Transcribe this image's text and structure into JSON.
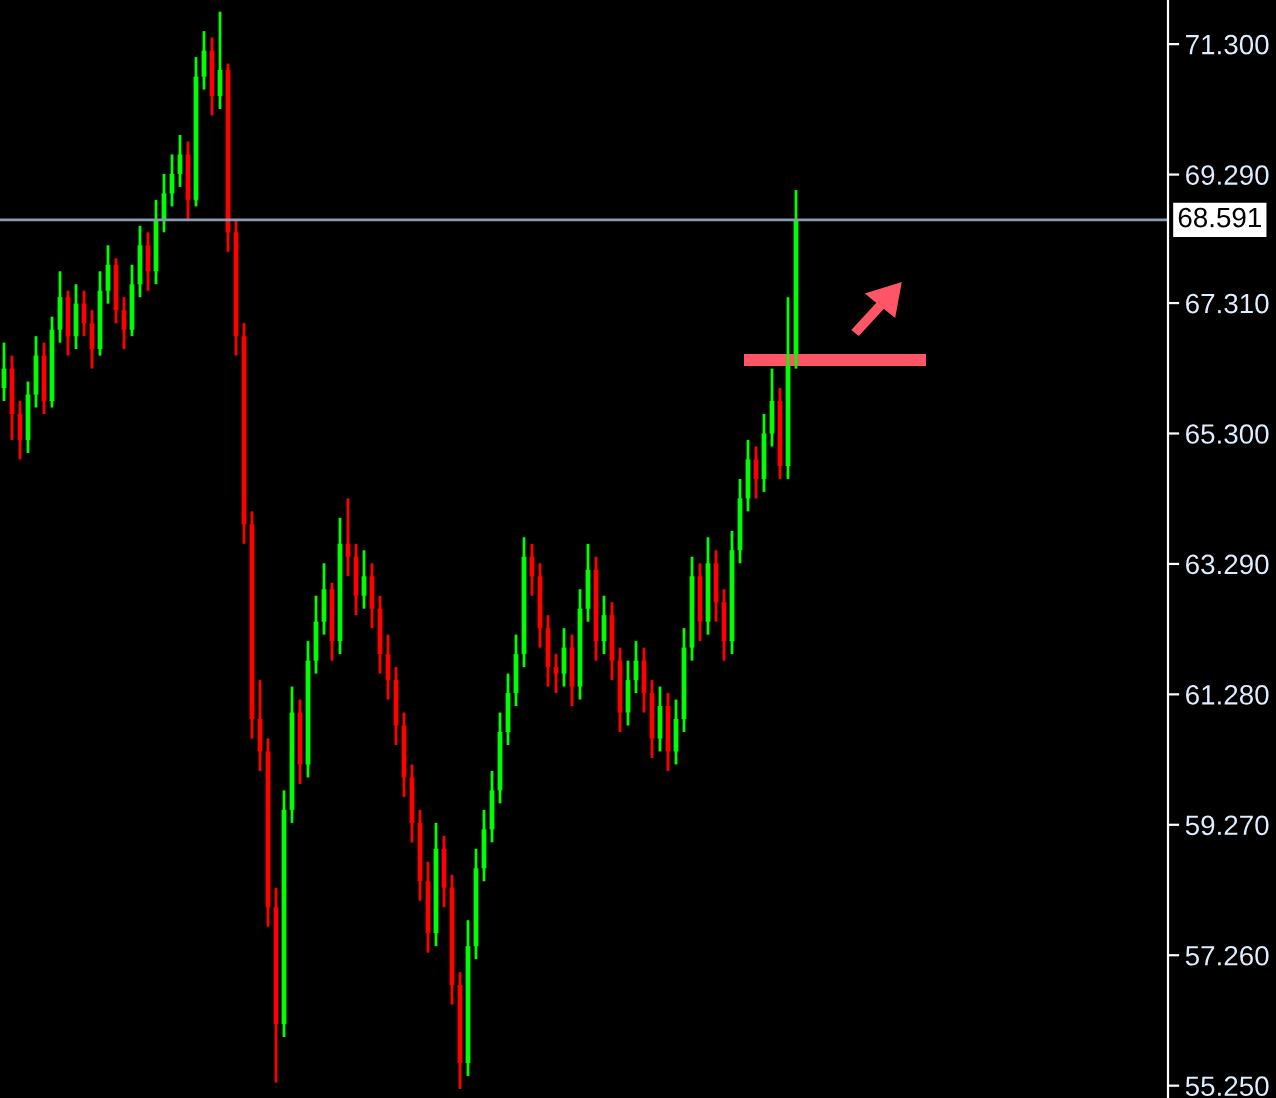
{
  "chart_data": {
    "type": "candlestick",
    "categories": [
      null,
      null,
      null,
      null,
      null,
      null,
      null,
      null,
      null,
      null,
      null,
      null,
      null,
      null,
      null,
      null,
      null,
      null,
      null,
      null,
      null,
      null,
      null,
      null,
      null,
      null,
      null,
      null,
      null,
      null,
      null,
      null,
      null,
      null,
      null,
      null,
      null,
      null,
      null,
      null,
      null,
      null,
      null,
      null,
      null,
      null,
      null,
      null,
      null,
      null,
      null,
      null,
      null,
      null,
      null,
      null,
      null,
      null,
      null,
      null,
      null,
      null,
      null,
      null,
      null,
      null,
      null,
      null,
      null,
      null,
      null,
      null,
      null,
      null,
      null,
      null,
      null,
      null,
      null,
      null,
      null,
      null,
      null,
      null,
      null,
      null,
      null,
      null,
      null,
      null,
      null,
      null,
      null,
      null,
      null,
      null,
      null,
      null,
      null,
      null,
      null,
      null,
      null,
      null,
      null,
      null,
      null,
      null,
      null,
      null,
      null,
      null,
      null,
      null,
      null,
      null,
      null,
      null,
      null,
      null,
      null,
      null,
      null,
      null,
      null,
      null,
      null,
      null,
      null,
      null,
      null,
      null,
      null,
      null,
      null,
      null,
      null,
      null,
      null,
      null,
      null,
      null,
      null,
      null,
      null,
      null
    ],
    "ohlc": [
      [
        66.0,
        66.7,
        65.8,
        66.3
      ],
      [
        66.3,
        66.5,
        65.2,
        65.6
      ],
      [
        65.6,
        65.8,
        64.9,
        65.2
      ],
      [
        65.2,
        66.1,
        65.0,
        65.9
      ],
      [
        65.9,
        66.8,
        65.7,
        66.5
      ],
      [
        66.5,
        66.7,
        65.6,
        65.8
      ],
      [
        65.8,
        67.1,
        65.7,
        66.9
      ],
      [
        66.9,
        67.8,
        66.7,
        67.4
      ],
      [
        67.4,
        67.5,
        66.5,
        66.8
      ],
      [
        66.8,
        67.6,
        66.6,
        67.3
      ],
      [
        67.3,
        67.5,
        66.8,
        67.0
      ],
      [
        67.0,
        67.2,
        66.3,
        66.6
      ],
      [
        66.6,
        67.8,
        66.5,
        67.5
      ],
      [
        67.5,
        68.2,
        67.3,
        67.9
      ],
      [
        67.9,
        68.0,
        67.0,
        67.2
      ],
      [
        67.2,
        67.4,
        66.6,
        66.9
      ],
      [
        66.9,
        67.9,
        66.8,
        67.6
      ],
      [
        67.6,
        68.5,
        67.4,
        68.2
      ],
      [
        68.2,
        68.4,
        67.5,
        67.8
      ],
      [
        67.8,
        68.9,
        67.6,
        68.6
      ],
      [
        68.6,
        69.3,
        68.4,
        69.0
      ],
      [
        69.0,
        69.6,
        68.8,
        69.3
      ],
      [
        69.3,
        69.9,
        69.1,
        69.6
      ],
      [
        69.6,
        69.8,
        68.6,
        68.9
      ],
      [
        68.9,
        71.1,
        68.8,
        70.8
      ],
      [
        70.8,
        71.5,
        70.6,
        71.2
      ],
      [
        71.2,
        71.4,
        70.2,
        70.5
      ],
      [
        70.5,
        71.8,
        70.3,
        70.9
      ],
      [
        70.9,
        71.0,
        68.1,
        68.4
      ],
      [
        68.4,
        68.6,
        66.5,
        66.8
      ],
      [
        66.8,
        67.0,
        63.6,
        63.9
      ],
      [
        63.9,
        64.1,
        60.6,
        60.9
      ],
      [
        60.9,
        61.5,
        60.1,
        60.4
      ],
      [
        60.4,
        60.6,
        57.7,
        58.0
      ],
      [
        58.0,
        58.3,
        55.3,
        56.2
      ],
      [
        56.2,
        59.8,
        56.0,
        59.5
      ],
      [
        59.5,
        61.4,
        59.3,
        61.0
      ],
      [
        61.0,
        61.2,
        59.9,
        60.2
      ],
      [
        60.2,
        62.1,
        60.0,
        61.8
      ],
      [
        61.8,
        62.8,
        61.6,
        62.4
      ],
      [
        62.4,
        63.3,
        62.2,
        62.9
      ],
      [
        62.9,
        63.0,
        61.8,
        62.1
      ],
      [
        62.1,
        64.0,
        61.9,
        63.6
      ],
      [
        63.6,
        64.3,
        63.1,
        63.4
      ],
      [
        63.4,
        63.6,
        62.5,
        62.8
      ],
      [
        62.8,
        63.5,
        62.6,
        63.1
      ],
      [
        63.1,
        63.3,
        62.3,
        62.6
      ],
      [
        62.6,
        62.8,
        61.6,
        61.9
      ],
      [
        61.9,
        62.2,
        61.2,
        61.5
      ],
      [
        61.5,
        61.7,
        60.5,
        60.8
      ],
      [
        60.8,
        61.0,
        59.7,
        60.0
      ],
      [
        60.0,
        60.2,
        59.0,
        59.3
      ],
      [
        59.3,
        59.5,
        58.1,
        58.4
      ],
      [
        58.4,
        58.7,
        57.3,
        57.6
      ],
      [
        57.6,
        59.3,
        57.4,
        58.9
      ],
      [
        58.9,
        59.1,
        58.0,
        58.3
      ],
      [
        58.3,
        58.5,
        56.5,
        56.8
      ],
      [
        56.8,
        57.0,
        55.2,
        55.6
      ],
      [
        55.6,
        57.8,
        55.4,
        57.4
      ],
      [
        57.4,
        58.9,
        57.2,
        58.6
      ],
      [
        58.6,
        59.5,
        58.4,
        59.2
      ],
      [
        59.2,
        60.1,
        59.0,
        59.8
      ],
      [
        59.8,
        61.0,
        59.6,
        60.7
      ],
      [
        60.7,
        61.6,
        60.5,
        61.3
      ],
      [
        61.3,
        62.2,
        61.1,
        61.9
      ],
      [
        61.9,
        63.7,
        61.7,
        63.4
      ],
      [
        63.4,
        63.6,
        62.8,
        63.1
      ],
      [
        63.1,
        63.3,
        62.0,
        62.3
      ],
      [
        62.3,
        62.5,
        61.4,
        61.7
      ],
      [
        61.7,
        61.9,
        61.3,
        61.6
      ],
      [
        61.6,
        62.3,
        61.4,
        62.0
      ],
      [
        62.0,
        62.2,
        61.1,
        61.4
      ],
      [
        61.4,
        62.9,
        61.2,
        62.6
      ],
      [
        62.6,
        63.6,
        62.4,
        63.2
      ],
      [
        63.2,
        63.4,
        61.8,
        62.1
      ],
      [
        62.1,
        62.8,
        61.9,
        62.5
      ],
      [
        62.5,
        62.7,
        61.5,
        61.8
      ],
      [
        61.8,
        62.0,
        60.7,
        61.0
      ],
      [
        61.0,
        61.8,
        60.8,
        61.5
      ],
      [
        61.5,
        62.1,
        61.3,
        61.8
      ],
      [
        61.8,
        62.0,
        61.0,
        61.3
      ],
      [
        61.3,
        61.5,
        60.3,
        60.6
      ],
      [
        60.6,
        61.4,
        60.4,
        61.1
      ],
      [
        61.1,
        61.3,
        60.1,
        60.4
      ],
      [
        60.4,
        61.2,
        60.2,
        60.9
      ],
      [
        60.9,
        62.3,
        60.7,
        62.0
      ],
      [
        62.0,
        63.4,
        61.8,
        63.1
      ],
      [
        63.1,
        63.3,
        62.1,
        62.4
      ],
      [
        62.4,
        63.7,
        62.2,
        63.3
      ],
      [
        63.3,
        63.5,
        62.4,
        62.7
      ],
      [
        62.7,
        62.9,
        61.8,
        62.1
      ],
      [
        62.1,
        63.8,
        61.9,
        63.5
      ],
      [
        63.5,
        64.6,
        63.3,
        64.3
      ],
      [
        64.3,
        65.2,
        64.1,
        64.9
      ],
      [
        64.9,
        65.1,
        64.3,
        64.6
      ],
      [
        64.6,
        65.6,
        64.4,
        65.3
      ],
      [
        65.3,
        66.3,
        65.1,
        65.8
      ],
      [
        65.8,
        66.0,
        64.6,
        64.8
      ],
      [
        64.8,
        67.4,
        64.6,
        66.5
      ],
      [
        66.5,
        69.05,
        66.3,
        68.59
      ],
      null,
      null,
      null,
      null,
      null,
      null,
      null,
      null,
      null,
      null,
      null,
      null,
      null,
      null,
      null,
      null,
      null,
      null,
      null,
      null,
      null,
      null,
      null,
      null,
      null,
      null,
      null,
      null,
      null,
      null,
      null,
      null,
      null,
      null,
      null,
      null,
      null,
      null,
      null,
      null,
      null,
      null,
      null,
      null,
      null,
      null
    ],
    "colors": [
      "#00ff00",
      "#ff0000",
      "#ff0000",
      "#00ff00",
      "#00ff00",
      "#ff0000",
      "#00ff00",
      "#00ff00",
      "#ff0000",
      "#00ff00",
      "#ff0000",
      "#ff0000",
      "#00ff00",
      "#00ff00",
      "#ff0000",
      "#ff0000",
      "#00ff00",
      "#00ff00",
      "#ff0000",
      "#00ff00",
      "#00ff00",
      "#00ff00",
      "#00ff00",
      "#ff0000",
      "#00ff00",
      "#00ff00",
      "#ff0000",
      "#00ff00",
      "#ff0000",
      "#ff0000",
      "#ff0000",
      "#ff0000",
      "#ff0000",
      "#ff0000",
      "#ff0000",
      "#00ff00",
      "#00ff00",
      "#ff0000",
      "#00ff00",
      "#00ff00",
      "#00ff00",
      "#ff0000",
      "#00ff00",
      "#ff0000",
      "#ff0000",
      "#00ff00",
      "#ff0000",
      "#ff0000",
      "#ff0000",
      "#ff0000",
      "#ff0000",
      "#ff0000",
      "#ff0000",
      "#ff0000",
      "#00ff00",
      "#ff0000",
      "#ff0000",
      "#ff0000",
      "#00ff00",
      "#00ff00",
      "#00ff00",
      "#00ff00",
      "#00ff00",
      "#00ff00",
      "#00ff00",
      "#00ff00",
      "#ff0000",
      "#ff0000",
      "#ff0000",
      "#ff0000",
      "#00ff00",
      "#ff0000",
      "#00ff00",
      "#00ff00",
      "#ff0000",
      "#00ff00",
      "#ff0000",
      "#ff0000",
      "#00ff00",
      "#00ff00",
      "#ff0000",
      "#ff0000",
      "#00ff00",
      "#ff0000",
      "#00ff00",
      "#00ff00",
      "#00ff00",
      "#ff0000",
      "#00ff00",
      "#ff0000",
      "#ff0000",
      "#00ff00",
      "#00ff00",
      "#00ff00",
      "#ff0000",
      "#00ff00",
      "#00ff00",
      "#ff0000",
      "#00ff00",
      "#00ff00",
      null,
      null,
      null,
      null,
      null,
      null,
      null,
      null,
      null,
      null,
      null,
      null,
      null,
      null,
      null,
      null,
      null,
      null,
      null,
      null,
      null,
      null,
      null,
      null,
      null,
      null,
      null,
      null,
      null,
      null,
      null,
      null,
      null,
      null,
      null,
      null,
      null,
      null,
      null,
      null,
      null,
      null,
      null,
      null,
      null,
      null
    ],
    "ylim": [
      55.06,
      71.98
    ],
    "yticks": [
      {
        "value": 55.25,
        "label": "55.250"
      },
      {
        "value": 57.26,
        "label": "57.260"
      },
      {
        "value": 59.27,
        "label": "59.270"
      },
      {
        "value": 61.28,
        "label": "61.280"
      },
      {
        "value": 63.29,
        "label": "63.290"
      },
      {
        "value": 65.3,
        "label": "65.300"
      },
      {
        "value": 67.31,
        "label": "67.310"
      },
      {
        "value": 69.29,
        "label": "69.290"
      },
      {
        "value": 71.3,
        "label": "71.300"
      }
    ],
    "ref_lines": [
      {
        "axis": "y",
        "value": 68.591,
        "label": "68.591",
        "color": "#8a9bb0"
      }
    ],
    "tick_labels": "y",
    "grid": false
  }
}
